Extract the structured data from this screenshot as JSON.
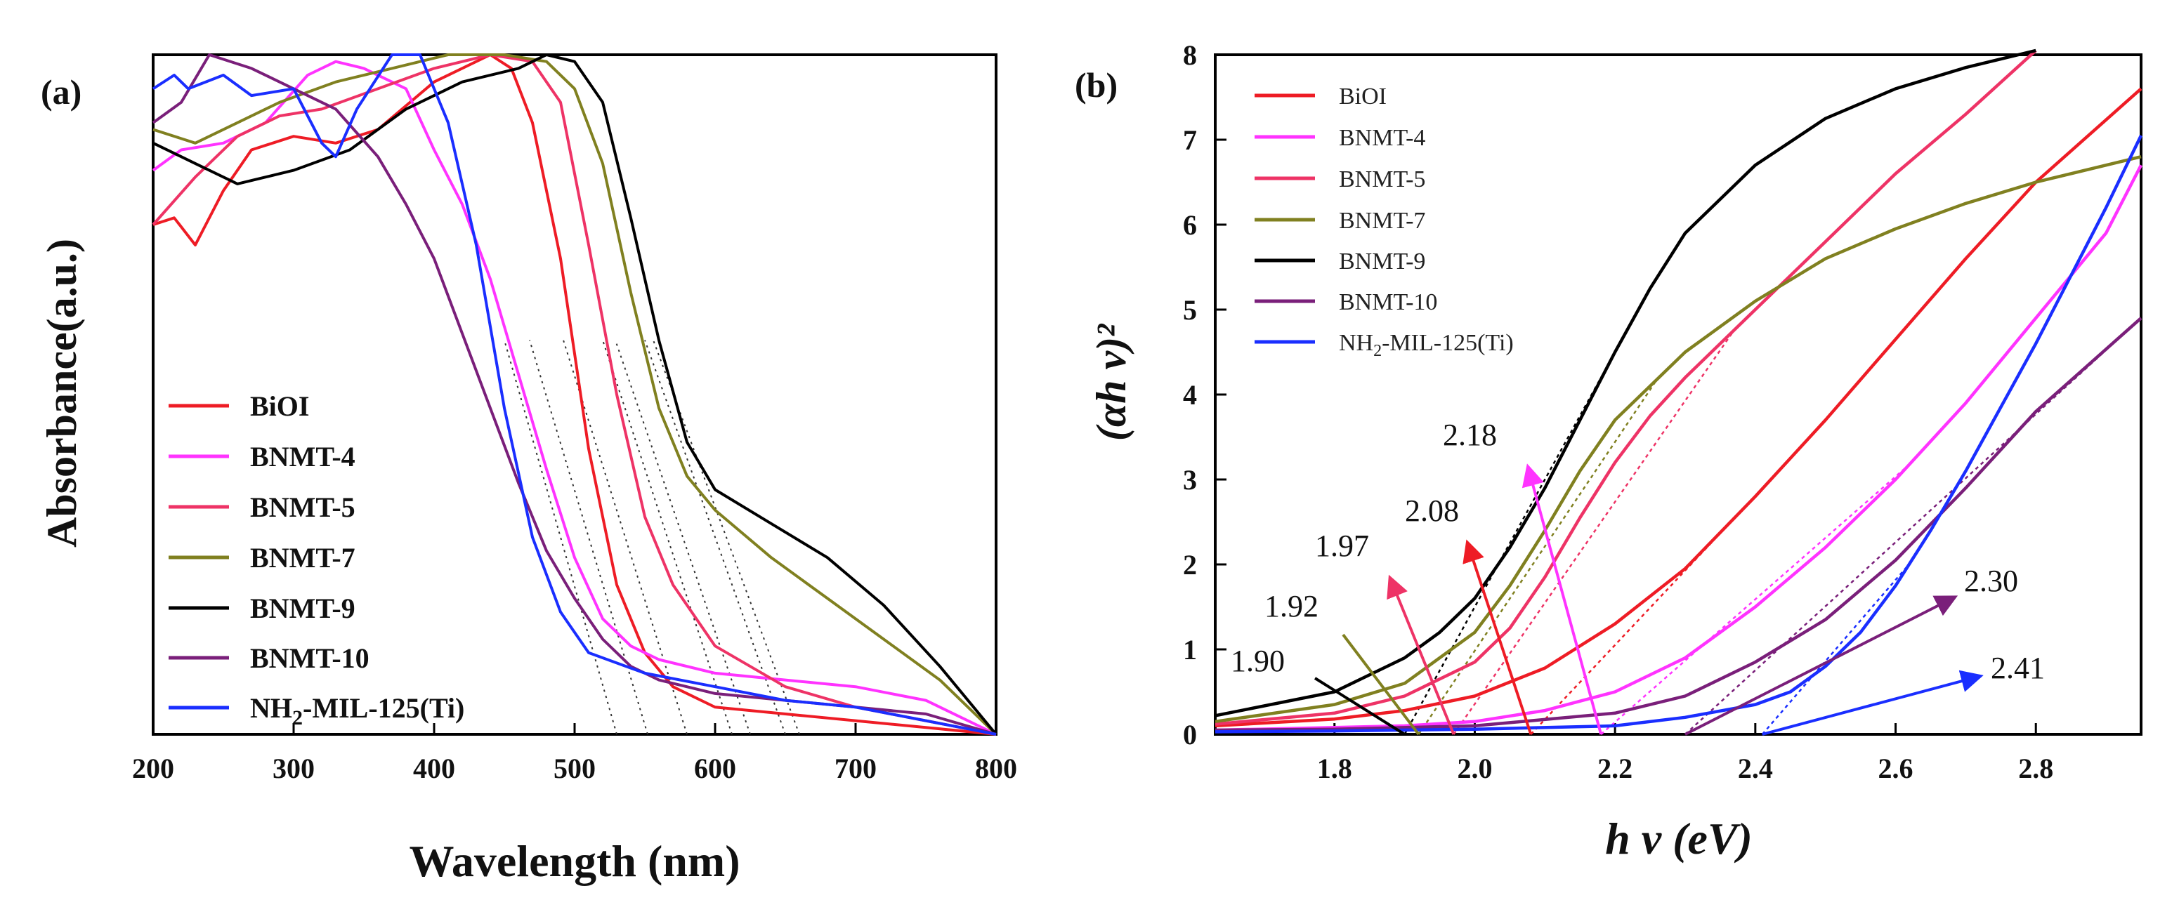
{
  "colors": {
    "BiOI": "#ee1c25",
    "BNMT-4": "#ff33ff",
    "BNMT-5": "#ee3366",
    "BNMT-7": "#808020",
    "BNMT-9": "#000000",
    "BNMT-10": "#7a1f7a",
    "NH2-MIL-125(Ti)": "#1a2eff"
  },
  "chart_data": [
    {
      "panel": "(a)",
      "type": "line",
      "xlabel": "Wavelength (nm)",
      "ylabel": "Absorbance(a.u.)",
      "xlim": [
        200,
        800
      ],
      "ylim": [
        0,
        1
      ],
      "xticks": [
        "200",
        "300",
        "400",
        "500",
        "600",
        "700",
        "800"
      ],
      "legend": [
        "BiOI",
        "BNMT-4",
        "BNMT-5",
        "BNMT-7",
        "BNMT-9",
        "BNMT-10",
        "NH2-MIL-125(Ti)"
      ],
      "legend_display": [
        "BiOI",
        "BNMT-4",
        "BNMT-5",
        "BNMT-7",
        "BNMT-9",
        "BNMT-10",
        "NH",
        "2",
        "-MIL-125(Ti)"
      ],
      "series": [
        {
          "name": "BiOI",
          "x": [
            200,
            215,
            230,
            250,
            270,
            300,
            330,
            360,
            400,
            440,
            455,
            470,
            490,
            510,
            530,
            550,
            570,
            600,
            650,
            700,
            750,
            800
          ],
          "y": [
            0.75,
            0.76,
            0.72,
            0.8,
            0.86,
            0.88,
            0.87,
            0.89,
            0.96,
            1.0,
            0.98,
            0.9,
            0.7,
            0.42,
            0.22,
            0.12,
            0.07,
            0.04,
            0.03,
            0.02,
            0.01,
            0.0
          ]
        },
        {
          "name": "BNMT-4",
          "x": [
            200,
            220,
            250,
            280,
            310,
            330,
            350,
            380,
            400,
            420,
            440,
            460,
            480,
            500,
            520,
            540,
            560,
            600,
            650,
            700,
            750,
            800
          ],
          "y": [
            0.83,
            0.86,
            0.87,
            0.9,
            0.97,
            0.99,
            0.98,
            0.95,
            0.86,
            0.78,
            0.67,
            0.53,
            0.39,
            0.26,
            0.17,
            0.13,
            0.11,
            0.09,
            0.08,
            0.07,
            0.05,
            0.0
          ]
        },
        {
          "name": "BNMT-5",
          "x": [
            200,
            230,
            260,
            290,
            320,
            360,
            400,
            440,
            470,
            490,
            510,
            530,
            550,
            570,
            600,
            650,
            700,
            750,
            800
          ],
          "y": [
            0.75,
            0.82,
            0.88,
            0.91,
            0.92,
            0.95,
            0.98,
            1.0,
            0.99,
            0.93,
            0.72,
            0.5,
            0.32,
            0.22,
            0.13,
            0.07,
            0.04,
            0.02,
            0.0
          ]
        },
        {
          "name": "BNMT-7",
          "x": [
            200,
            230,
            260,
            290,
            330,
            370,
            410,
            450,
            480,
            500,
            520,
            540,
            560,
            580,
            600,
            640,
            680,
            720,
            760,
            800
          ],
          "y": [
            0.89,
            0.87,
            0.9,
            0.93,
            0.96,
            0.98,
            1.0,
            1.0,
            0.99,
            0.95,
            0.84,
            0.65,
            0.48,
            0.38,
            0.33,
            0.26,
            0.2,
            0.14,
            0.08,
            0.0
          ]
        },
        {
          "name": "BNMT-9",
          "x": [
            200,
            230,
            260,
            300,
            340,
            380,
            420,
            460,
            480,
            500,
            520,
            540,
            560,
            580,
            600,
            640,
            680,
            720,
            760,
            800
          ],
          "y": [
            0.87,
            0.84,
            0.81,
            0.83,
            0.86,
            0.92,
            0.96,
            0.98,
            1.0,
            0.99,
            0.93,
            0.76,
            0.58,
            0.43,
            0.36,
            0.31,
            0.26,
            0.19,
            0.1,
            0.0
          ]
        },
        {
          "name": "BNMT-10",
          "x": [
            200,
            220,
            240,
            270,
            300,
            330,
            360,
            380,
            400,
            420,
            440,
            460,
            480,
            500,
            520,
            540,
            560,
            600,
            650,
            700,
            750,
            800
          ],
          "y": [
            0.9,
            0.93,
            1.0,
            0.98,
            0.95,
            0.92,
            0.85,
            0.78,
            0.7,
            0.59,
            0.48,
            0.37,
            0.27,
            0.2,
            0.14,
            0.1,
            0.08,
            0.06,
            0.05,
            0.04,
            0.03,
            0.0
          ]
        },
        {
          "name": "NH2-MIL-125(Ti)",
          "x": [
            200,
            215,
            225,
            250,
            270,
            300,
            320,
            330,
            345,
            370,
            390,
            410,
            430,
            450,
            470,
            490,
            510,
            550,
            600,
            650,
            700,
            750,
            800
          ],
          "y": [
            0.95,
            0.97,
            0.95,
            0.97,
            0.94,
            0.95,
            0.87,
            0.85,
            0.92,
            1.0,
            1.0,
            0.9,
            0.72,
            0.48,
            0.29,
            0.18,
            0.12,
            0.09,
            0.07,
            0.05,
            0.04,
            0.02,
            0.0
          ]
        }
      ],
      "tangent_intercepts_nm": [
        530,
        552,
        580,
        612,
        625,
        650,
        660
      ]
    },
    {
      "panel": "(b)",
      "type": "line",
      "xlabel": "h ν (eV)",
      "ylabel": "(αh ν)²",
      "xlim": [
        1.63,
        2.95
      ],
      "ylim": [
        0,
        8
      ],
      "xticks": [
        "1.8",
        "2.0",
        "2.2",
        "2.4",
        "2.6",
        "2.8"
      ],
      "yticks": [
        "0",
        "1",
        "2",
        "3",
        "4",
        "5",
        "6",
        "7",
        "8"
      ],
      "legend": [
        "BiOI",
        "BNMT-4",
        "BNMT-5",
        "BNMT-7",
        "BNMT-9",
        "BNMT-10",
        "NH2-MIL-125(Ti)"
      ],
      "legend_display": [
        "BiOI",
        "BNMT-4",
        "BNMT-5",
        "BNMT-7",
        "BNMT-9",
        "BNMT-10",
        "NH",
        "2",
        "-MIL-125(Ti)"
      ],
      "series": [
        {
          "name": "BiOI",
          "x": [
            1.63,
            1.8,
            1.9,
            2.0,
            2.1,
            2.2,
            2.3,
            2.4,
            2.5,
            2.6,
            2.7,
            2.8,
            2.95
          ],
          "y": [
            0.1,
            0.18,
            0.28,
            0.45,
            0.78,
            1.3,
            1.95,
            2.8,
            3.7,
            4.65,
            5.6,
            6.5,
            7.6
          ]
        },
        {
          "name": "BNMT-4",
          "x": [
            1.63,
            1.8,
            1.9,
            2.0,
            2.1,
            2.2,
            2.3,
            2.4,
            2.5,
            2.6,
            2.7,
            2.8,
            2.9,
            2.95
          ],
          "y": [
            0.05,
            0.08,
            0.1,
            0.15,
            0.28,
            0.5,
            0.9,
            1.5,
            2.2,
            3.0,
            3.9,
            4.9,
            5.9,
            6.7
          ]
        },
        {
          "name": "BNMT-5",
          "x": [
            1.63,
            1.8,
            1.9,
            2.0,
            2.05,
            2.1,
            2.15,
            2.2,
            2.25,
            2.3,
            2.4,
            2.5,
            2.6,
            2.7,
            2.8
          ],
          "y": [
            0.12,
            0.25,
            0.45,
            0.85,
            1.25,
            1.85,
            2.55,
            3.2,
            3.75,
            4.2,
            5.0,
            5.8,
            6.6,
            7.3,
            8.05
          ]
        },
        {
          "name": "BNMT-7",
          "x": [
            1.63,
            1.8,
            1.9,
            2.0,
            2.05,
            2.1,
            2.15,
            2.2,
            2.25,
            2.3,
            2.4,
            2.5,
            2.6,
            2.7,
            2.8,
            2.95
          ],
          "y": [
            0.15,
            0.35,
            0.6,
            1.2,
            1.75,
            2.4,
            3.1,
            3.7,
            4.1,
            4.5,
            5.1,
            5.6,
            5.95,
            6.25,
            6.5,
            6.8
          ]
        },
        {
          "name": "BNMT-9",
          "x": [
            1.63,
            1.8,
            1.9,
            1.95,
            2.0,
            2.05,
            2.1,
            2.15,
            2.2,
            2.25,
            2.3,
            2.4,
            2.5,
            2.6,
            2.7,
            2.8
          ],
          "y": [
            0.22,
            0.5,
            0.9,
            1.2,
            1.6,
            2.2,
            2.9,
            3.7,
            4.5,
            5.25,
            5.9,
            6.7,
            7.25,
            7.6,
            7.85,
            8.05
          ]
        },
        {
          "name": "BNMT-10",
          "x": [
            1.63,
            1.8,
            2.0,
            2.2,
            2.3,
            2.4,
            2.5,
            2.6,
            2.7,
            2.8,
            2.95
          ],
          "y": [
            0.05,
            0.06,
            0.1,
            0.25,
            0.45,
            0.85,
            1.35,
            2.05,
            2.9,
            3.8,
            4.9
          ]
        },
        {
          "name": "NH2-MIL-125(Ti)",
          "x": [
            1.63,
            1.8,
            2.0,
            2.2,
            2.3,
            2.4,
            2.45,
            2.5,
            2.55,
            2.6,
            2.65,
            2.7,
            2.75,
            2.8,
            2.85,
            2.9,
            2.95
          ],
          "y": [
            0.03,
            0.04,
            0.06,
            0.1,
            0.2,
            0.35,
            0.5,
            0.8,
            1.2,
            1.75,
            2.4,
            3.1,
            3.85,
            4.6,
            5.4,
            6.2,
            7.05
          ]
        }
      ],
      "annotations": [
        {
          "label": "1.90",
          "series": "BNMT-9",
          "value": 1.9
        },
        {
          "label": "1.92",
          "series": "BNMT-7",
          "value": 1.92
        },
        {
          "label": "1.97",
          "series": "BNMT-5",
          "value": 1.97
        },
        {
          "label": "2.08",
          "series": "BiOI",
          "value": 2.08
        },
        {
          "label": "2.18",
          "series": "BNMT-4",
          "value": 2.18
        },
        {
          "label": "2.30",
          "series": "BNMT-10",
          "value": 2.3
        },
        {
          "label": "2.41",
          "series": "NH2-MIL-125(Ti)",
          "value": 2.41
        }
      ]
    }
  ]
}
